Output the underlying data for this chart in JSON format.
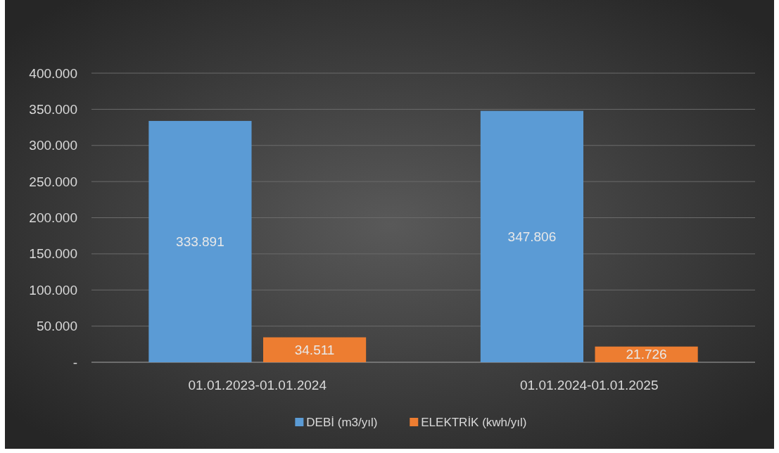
{
  "chart_data": {
    "type": "bar",
    "categories": [
      "01.01.2023-01.01.2024",
      "01.01.2024-01.01.2025"
    ],
    "series": [
      {
        "name": "DEBİ (m3/yıl)",
        "color": "#5b9bd5",
        "values": [
          333891,
          347806
        ],
        "value_labels": [
          "333.891",
          "347.806"
        ]
      },
      {
        "name": "ELEKTRİK (kwh/yıl)",
        "color": "#ed7d31",
        "values": [
          34511,
          21726
        ],
        "value_labels": [
          "34.511",
          "21.726"
        ]
      }
    ],
    "ylim": [
      0,
      400000
    ],
    "yticks": [
      {
        "value": 0,
        "label": "-"
      },
      {
        "value": 50000,
        "label": "50.000"
      },
      {
        "value": 100000,
        "label": "100.000"
      },
      {
        "value": 150000,
        "label": "150.000"
      },
      {
        "value": 200000,
        "label": "200.000"
      },
      {
        "value": 250000,
        "label": "250.000"
      },
      {
        "value": 300000,
        "label": "300.000"
      },
      {
        "value": 350000,
        "label": "350.000"
      },
      {
        "value": 400000,
        "label": "400.000"
      }
    ],
    "grid": "y",
    "legend": "bottom"
  }
}
